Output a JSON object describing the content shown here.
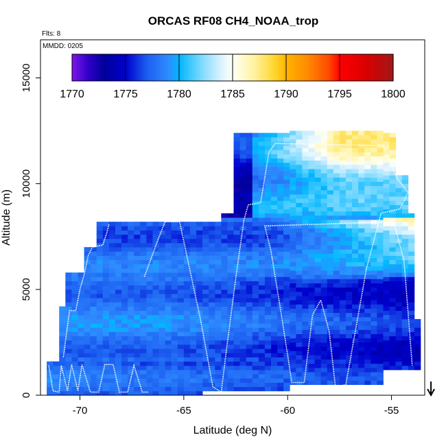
{
  "chart_data": {
    "type": "heatmap",
    "title": "ORCAS RF08 CH4_NOAA_trop",
    "flights_note": "Flts: 8",
    "date_note": "MMDD: 0205",
    "xlabel": "Latitude (deg N)",
    "ylabel": "Altitude (m)",
    "xlim": [
      -71.9,
      -53.4
    ],
    "ylim": [
      0,
      16800
    ],
    "x_ticks": [
      -70,
      -65,
      -60,
      -55
    ],
    "x_tick_labels": [
      "-70",
      "-65",
      "-60",
      "-55"
    ],
    "y_ticks": [
      0,
      5000,
      10000,
      15000
    ],
    "y_tick_labels": [
      "0",
      "5000",
      "10000",
      "15000"
    ],
    "colorbar": {
      "min": 1770,
      "max": 1800,
      "ticks": [
        1770,
        1775,
        1780,
        1785,
        1790,
        1795,
        1800
      ],
      "tick_labels": [
        "1770",
        "1775",
        "1780",
        "1785",
        "1790",
        "1795",
        "1800"
      ],
      "stops": [
        {
          "value": 1770,
          "color": "#7f16e8"
        },
        {
          "value": 1771.5,
          "color": "#3000c8"
        },
        {
          "value": 1773,
          "color": "#00009a"
        },
        {
          "value": 1775,
          "color": "#0000cd"
        },
        {
          "value": 1777,
          "color": "#1c5ef0"
        },
        {
          "value": 1779,
          "color": "#2f8cff"
        },
        {
          "value": 1780,
          "color": "#00b6ff"
        },
        {
          "value": 1782,
          "color": "#79d8ff"
        },
        {
          "value": 1784,
          "color": "#dff4ff"
        },
        {
          "value": 1785,
          "color": "#fffff8"
        },
        {
          "value": 1787,
          "color": "#fff3a0"
        },
        {
          "value": 1789,
          "color": "#ffd42a"
        },
        {
          "value": 1790,
          "color": "#ffb400"
        },
        {
          "value": 1792,
          "color": "#ff8a00"
        },
        {
          "value": 1794,
          "color": "#ff4a00"
        },
        {
          "value": 1795,
          "color": "#ff0000"
        },
        {
          "value": 1797.5,
          "color": "#d80000"
        },
        {
          "value": 1800,
          "color": "#a01818"
        }
      ]
    },
    "arrow_latitude": -53.1,
    "flight_track": [
      [
        -71.5,
        1400
      ],
      [
        -71.3,
        200
      ],
      [
        -71.0,
        150
      ],
      [
        -70.9,
        1400
      ],
      [
        -70.6,
        200
      ],
      [
        -70.4,
        1450
      ],
      [
        -70.1,
        200
      ],
      [
        -69.9,
        1450
      ],
      [
        -69.5,
        150
      ],
      [
        -69.1,
        150
      ],
      [
        -68.8,
        1450
      ],
      [
        -68.4,
        1450
      ],
      [
        -68.1,
        150
      ],
      [
        -67.7,
        150
      ],
      [
        -67.4,
        1400
      ],
      [
        -67.0,
        150
      ],
      [
        -66.7,
        150
      ]
    ],
    "flight_track_b": [
      [
        -70.8,
        1800
      ],
      [
        -70.5,
        4000
      ],
      [
        -70.2,
        4000
      ],
      [
        -70.0,
        5000
      ],
      [
        -69.8,
        5700
      ],
      [
        -69.6,
        6600
      ],
      [
        -69.4,
        7000
      ],
      [
        -68.9,
        7100
      ],
      [
        -68.7,
        7700
      ],
      [
        -68.6,
        8100
      ]
    ],
    "flight_track_c": [
      [
        -66.9,
        5600
      ],
      [
        -66.3,
        7200
      ],
      [
        -65.9,
        8200
      ],
      [
        -65.2,
        8200
      ],
      [
        -64.9,
        6800
      ],
      [
        -64.2,
        3600
      ],
      [
        -63.6,
        400
      ],
      [
        -63.2,
        150
      ],
      [
        -62.9,
        2500
      ],
      [
        -62.5,
        5500
      ],
      [
        -62.1,
        8300
      ],
      [
        -61.9,
        9000
      ],
      [
        -61.3,
        9100
      ],
      [
        -60.9,
        11500
      ],
      [
        -60.6,
        11900
      ],
      [
        -55.4,
        11800
      ],
      [
        -54.7,
        10200
      ],
      [
        -54.2,
        9600
      ],
      [
        -54.6,
        8800
      ],
      [
        -55.5,
        8600
      ],
      [
        -56.2,
        6000
      ],
      [
        -57.2,
        500
      ],
      [
        -57.7,
        400
      ],
      [
        -58.0,
        3000
      ],
      [
        -58.4,
        4500
      ],
      [
        -58.8,
        3800
      ],
      [
        -59.2,
        600
      ],
      [
        -59.8,
        600
      ],
      [
        -60.3,
        3800
      ],
      [
        -60.8,
        6800
      ],
      [
        -61.1,
        8000
      ],
      [
        -54.9,
        8200
      ],
      [
        -54.4,
        6400
      ],
      [
        -54.0,
        1400
      ]
    ],
    "curtain": {
      "column_width_deg": 0.3,
      "row_height_m": 200,
      "columns": [
        {
          "lat0": -71.6,
          "lat1": -71.1,
          "top": 1600
        },
        {
          "lat0": -71.1,
          "lat1": -70.6,
          "top": 4200
        },
        {
          "lat0": -70.6,
          "lat1": -69.8,
          "top": 5800
        },
        {
          "lat0": -69.8,
          "lat1": -69.2,
          "top": 7000
        },
        {
          "lat0": -69.2,
          "lat1": -63.3,
          "top": 8200
        },
        {
          "lat0": -63.3,
          "lat1": -62.6,
          "top": 8600
        },
        {
          "lat0": -62.6,
          "lat1": -61.0,
          "top": 12300
        },
        {
          "lat0": -61.0,
          "lat1": -54.8,
          "top": 12400
        },
        {
          "lat0": -54.8,
          "lat1": -54.1,
          "top": 10400
        },
        {
          "lat0": -54.1,
          "lat1": -53.9,
          "top": 8600
        },
        {
          "lat0": -53.9,
          "lat1": -53.5,
          "top": 3600
        }
      ],
      "bottoms": [
        {
          "lat0": -71.6,
          "lat1": -64.0,
          "bottom": 0
        },
        {
          "lat0": -64.0,
          "lat1": -60.0,
          "bottom": 200
        },
        {
          "lat0": -60.0,
          "lat1": -55.5,
          "bottom": 500
        },
        {
          "lat0": -55.5,
          "lat1": -53.5,
          "bottom": 1200
        }
      ]
    }
  }
}
